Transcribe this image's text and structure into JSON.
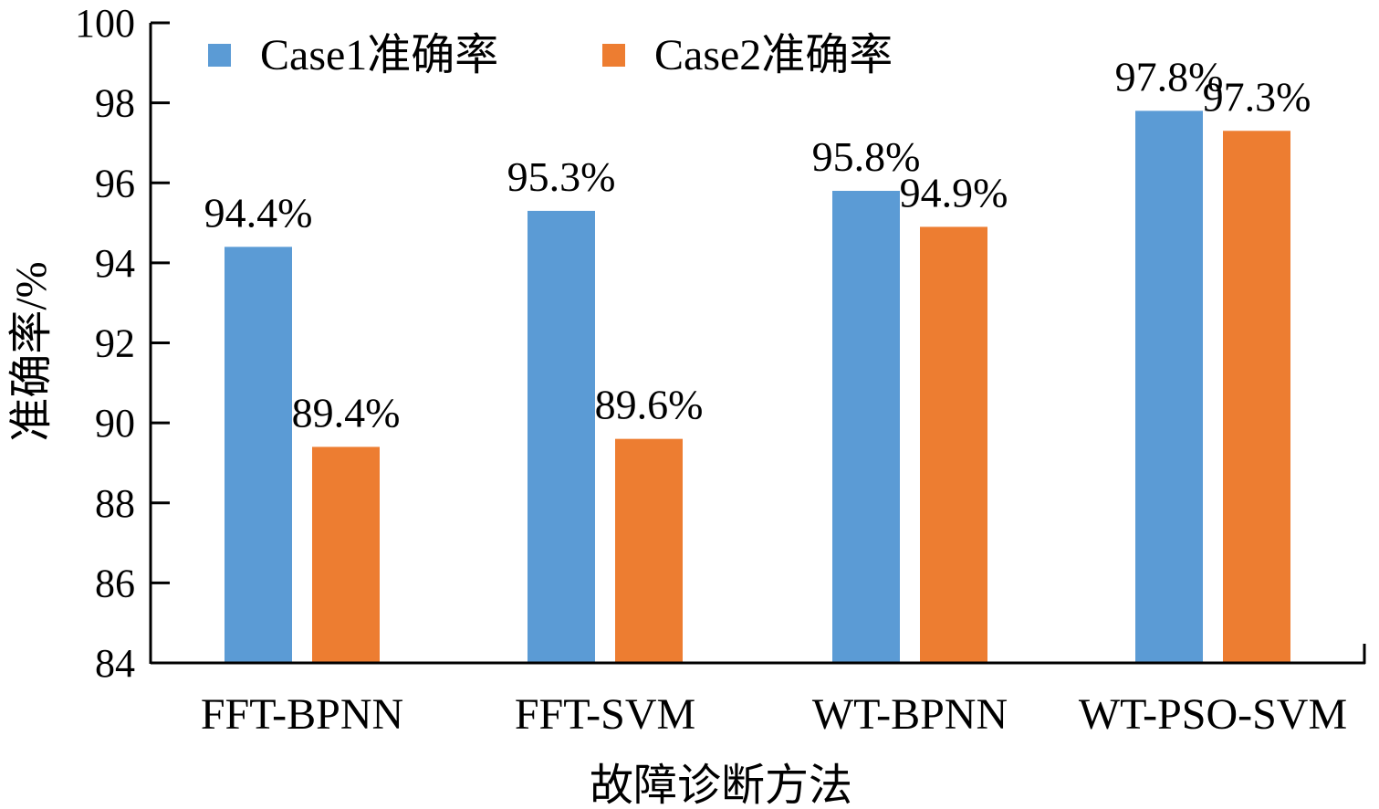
{
  "chart_data": {
    "type": "bar",
    "title": "",
    "xlabel": "故障诊断方法",
    "ylabel": "准确率/%",
    "ylim": [
      84,
      100
    ],
    "yticks": [
      84,
      86,
      88,
      90,
      92,
      94,
      96,
      98,
      100
    ],
    "categories": [
      "FFT-BPNN",
      "FFT-SVM",
      "WT-BPNN",
      "WT-PSO-SVM"
    ],
    "series": [
      {
        "name": "Case1准确率",
        "color": "#5b9bd5",
        "values": [
          94.4,
          95.3,
          95.8,
          97.8
        ],
        "labels": [
          "94.4%",
          "95.3%",
          "95.8%",
          "97.8%"
        ]
      },
      {
        "name": "Case2准确率",
        "color": "#ed7d31",
        "values": [
          89.4,
          89.6,
          94.9,
          97.3
        ],
        "labels": [
          "89.4%",
          "89.6%",
          "94.9%",
          "97.3%"
        ]
      }
    ],
    "legend_position": "top-left",
    "grid": false
  }
}
